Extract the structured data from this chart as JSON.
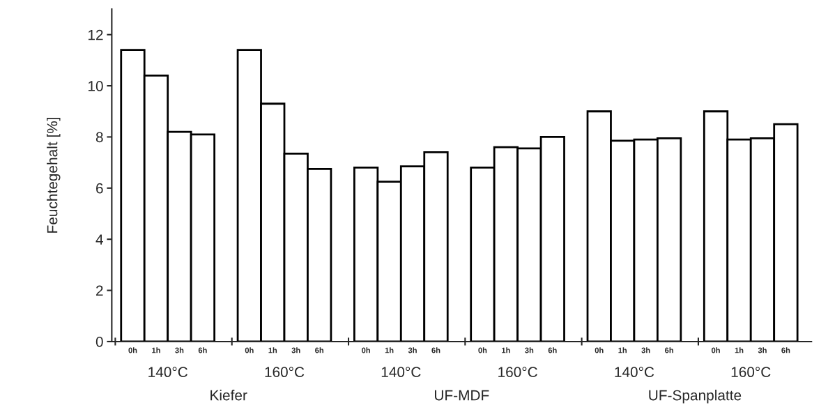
{
  "chart_data": {
    "type": "bar",
    "ylabel": "Feuchtegehalt [%]",
    "categories": [
      "0h",
      "1h",
      "3h",
      "6h",
      "0h",
      "1h",
      "3h",
      "6h",
      "0h",
      "1h",
      "3h",
      "6h",
      "0h",
      "1h",
      "3h",
      "6h",
      "0h",
      "1h",
      "3h",
      "6h",
      "0h",
      "1h",
      "3h",
      "6h"
    ],
    "values": [
      11.4,
      10.4,
      8.2,
      8.1,
      11.4,
      9.3,
      7.35,
      6.75,
      6.8,
      6.25,
      6.85,
      7.4,
      6.8,
      7.6,
      7.55,
      8.0,
      9.0,
      7.85,
      7.9,
      7.95,
      9.0,
      7.9,
      7.95,
      8.5
    ],
    "color": "#ffffff",
    "ylim": [
      0,
      13
    ],
    "yticks": [
      0,
      2,
      4,
      6,
      8,
      10,
      12
    ],
    "grid": false,
    "annotations": [
      "140°C",
      "160°C",
      "140°C",
      "160°C",
      "140°C",
      "160°C",
      "Kiefer",
      "UF-MDF",
      "UF-Spanplatte"
    ]
  }
}
